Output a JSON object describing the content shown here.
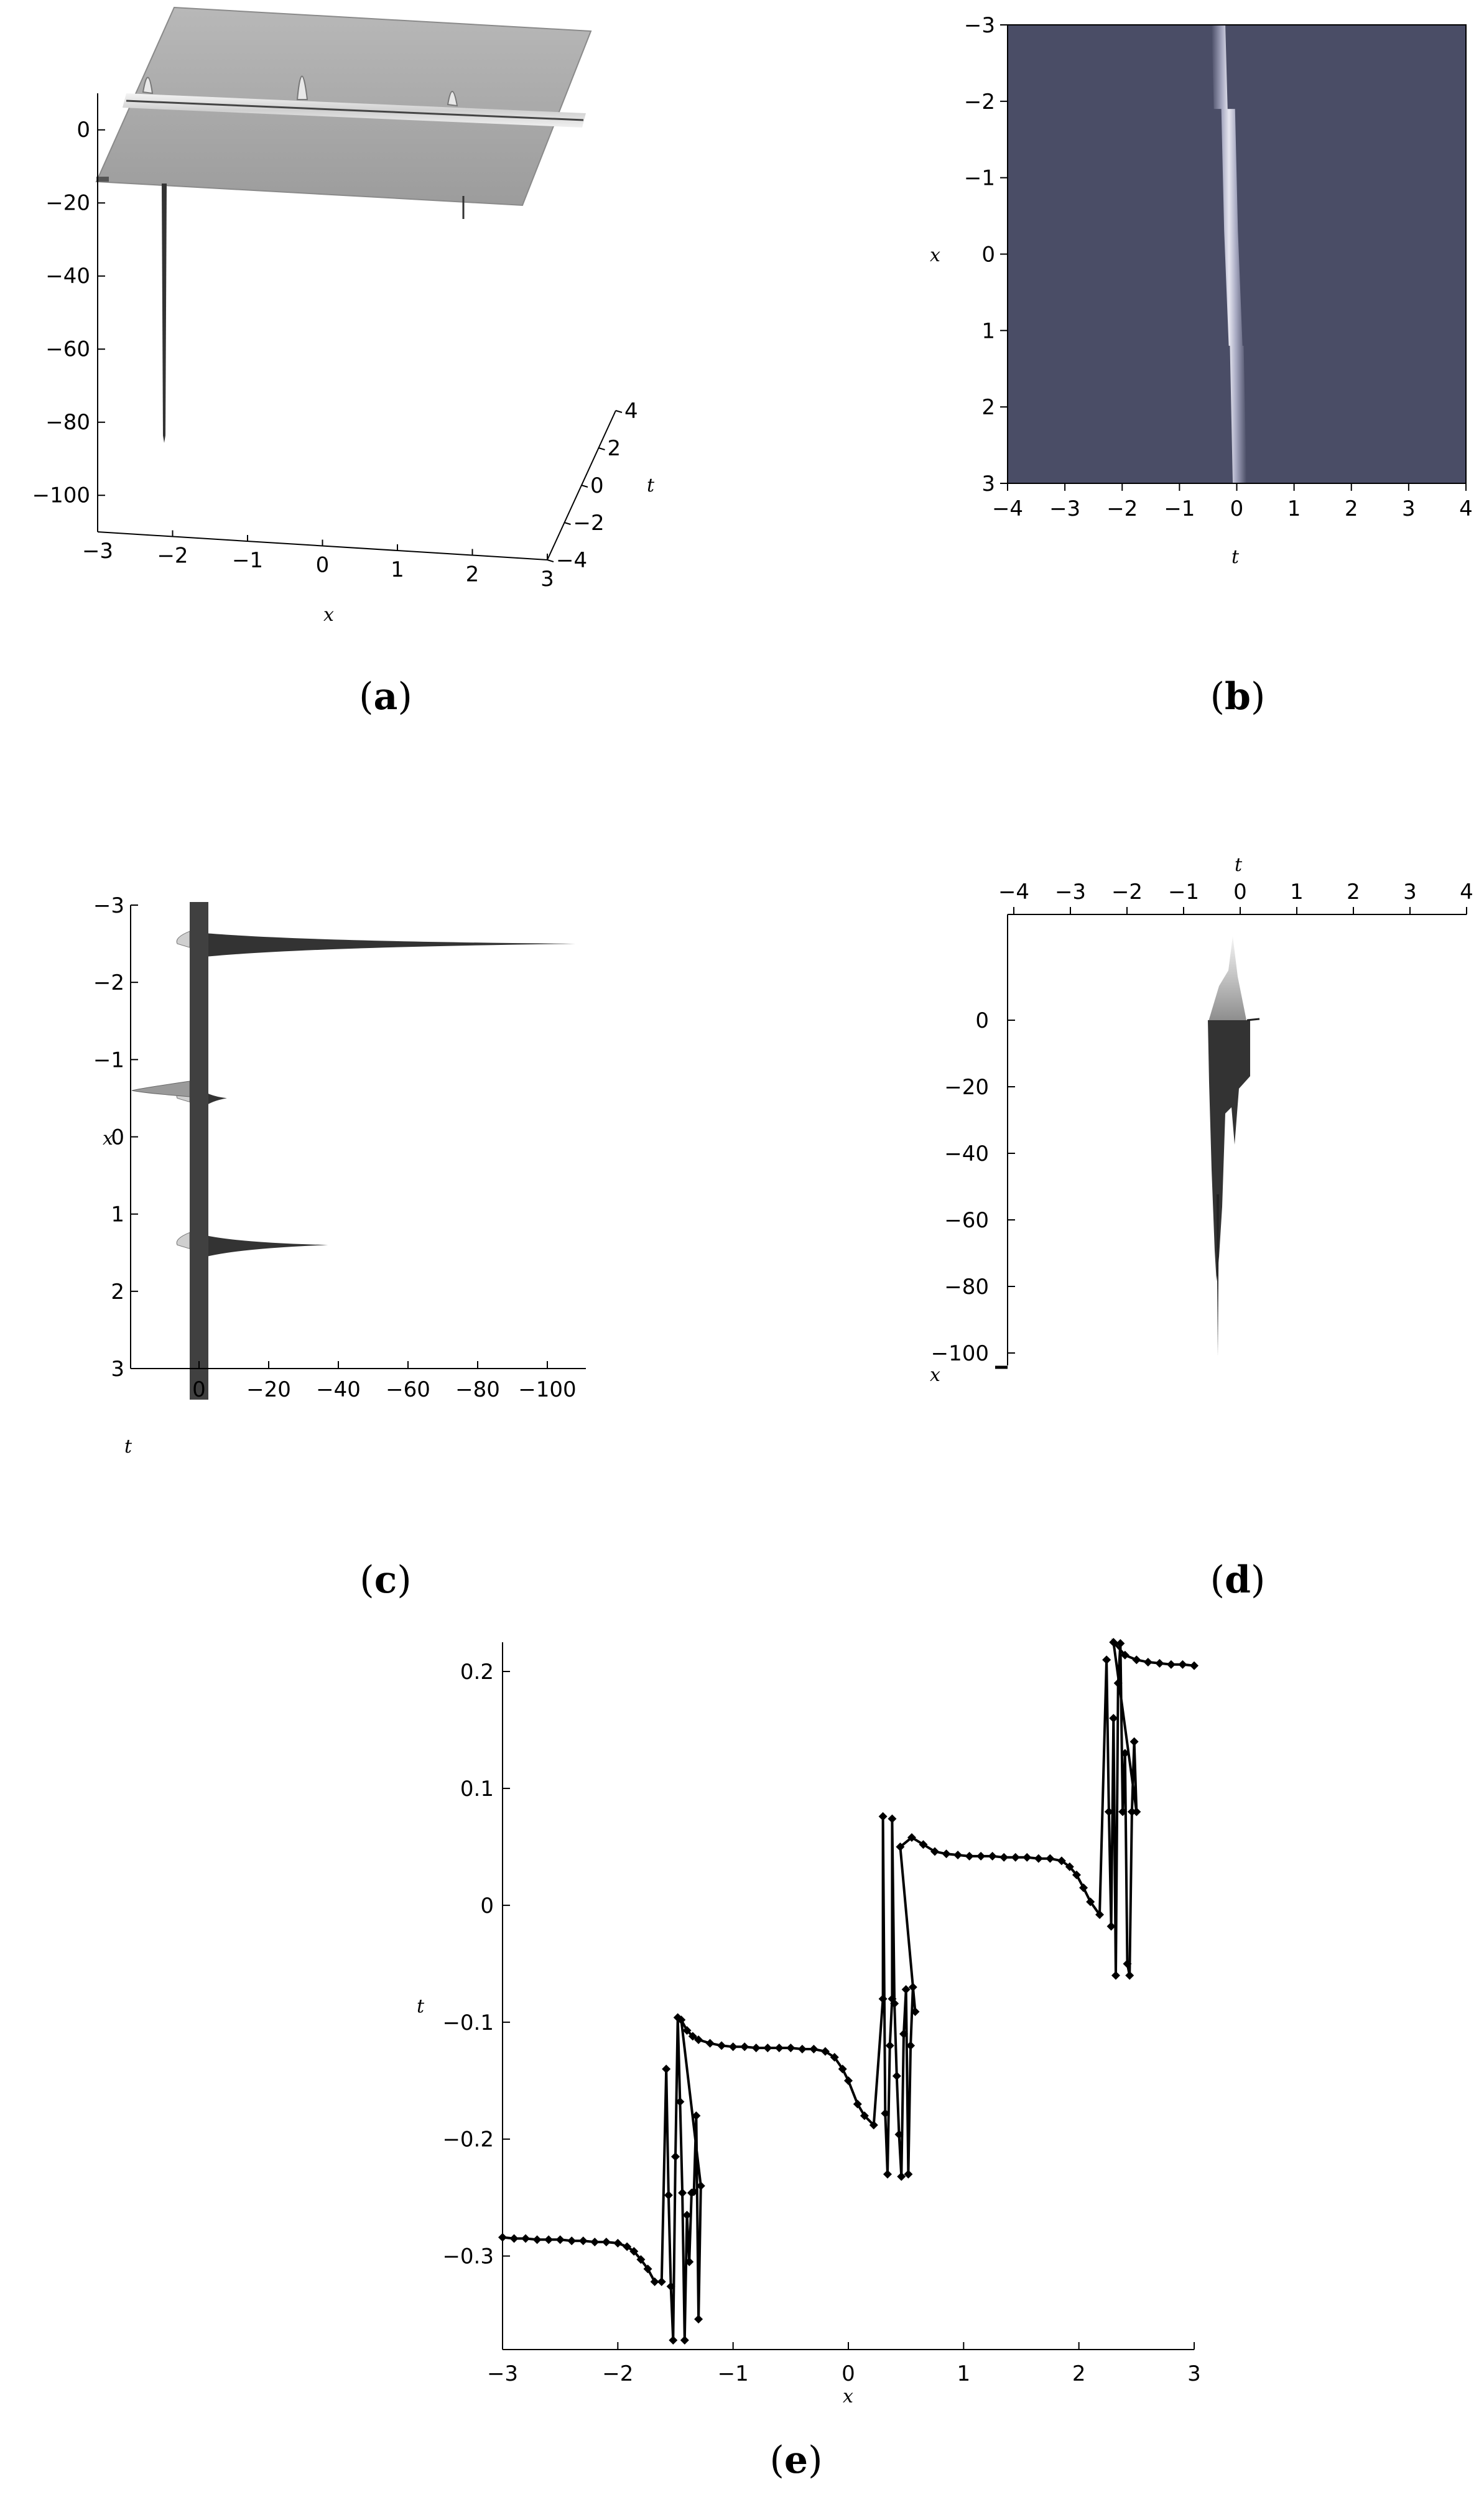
{
  "panels": {
    "a": {
      "caption_open": "(",
      "caption_letter": "a",
      "caption_close": ")"
    },
    "b": {
      "caption_open": "(",
      "caption_letter": "b",
      "caption_close": ")"
    },
    "c": {
      "caption_open": "(",
      "caption_letter": "c",
      "caption_close": ")"
    },
    "d": {
      "caption_open": "(",
      "caption_letter": "d",
      "caption_close": ")"
    },
    "e": {
      "caption_open": "(",
      "caption_letter": "e",
      "caption_close": ")"
    }
  },
  "chart_data": [
    {
      "id": "a",
      "type": "other",
      "view": "3d-surface",
      "xlabel": "x",
      "ylabel": "t",
      "x_ticks": [
        -3,
        -2,
        -1,
        0,
        1,
        2,
        3
      ],
      "z_ticks": [
        0,
        -20,
        -40,
        -60,
        -80,
        -100
      ],
      "t_ticks": [
        4,
        2,
        0,
        -2,
        -4
      ],
      "zlim": [
        -110,
        10
      ],
      "spike_min": -85,
      "colors": {
        "surface": "#a9a9a9",
        "spike": "#333333"
      }
    },
    {
      "id": "b",
      "type": "heatmap",
      "xlabel": "t",
      "ylabel": "x",
      "x_ticks": [
        -4,
        -3,
        -2,
        -1,
        0,
        1,
        2,
        3,
        4
      ],
      "y_ticks": [
        -3,
        -2,
        -1,
        0,
        1,
        2,
        3
      ],
      "xlim": [
        -4,
        4
      ],
      "ylim": [
        -3,
        3
      ],
      "colors": {
        "background": "#4a4d66",
        "ridge": "#d8d8e4"
      }
    },
    {
      "id": "c",
      "type": "other",
      "view": "3d-surface-side",
      "xlabel": "t",
      "ylabel": "x",
      "y_ticks": [
        -3,
        -2,
        -1,
        0,
        1,
        2,
        3
      ],
      "z_ticks": [
        0,
        -20,
        -40,
        -60,
        -80,
        -100
      ],
      "spikes": [
        {
          "x": -2.5,
          "tip": -108
        },
        {
          "x": -0.5,
          "tip": -8
        },
        {
          "x": 1.4,
          "tip": -37
        }
      ],
      "colors": {
        "surface": "#404040",
        "spike": "#333333"
      }
    },
    {
      "id": "d",
      "type": "other",
      "view": "3d-surface-side",
      "xlabel": "t",
      "ylabel": "x",
      "t_ticks": [
        -4,
        -3,
        -2,
        -1,
        0,
        1,
        2,
        3,
        4
      ],
      "z_ticks": [
        0,
        -20,
        -40,
        -60,
        -80,
        -100
      ],
      "zlim": [
        -110,
        20
      ],
      "colors": {
        "surface": "#333333",
        "highlight": "#d0d0d0"
      }
    },
    {
      "id": "e",
      "type": "line",
      "xlabel": "x",
      "ylabel": "t",
      "x_ticks": [
        -3,
        -2,
        -1,
        0,
        1,
        2,
        3
      ],
      "y_ticks": [
        0.2,
        0.1,
        0,
        -0.1,
        -0.2,
        -0.3
      ],
      "xlim": [
        -3,
        3
      ],
      "ylim": [
        -0.38,
        0.225
      ],
      "series": [
        {
          "marker": "diamond",
          "color": "#000000",
          "points": [
            [
              -3.0,
              -0.284
            ],
            [
              -2.9,
              -0.285
            ],
            [
              -2.8,
              -0.285
            ],
            [
              -2.7,
              -0.286
            ],
            [
              -2.6,
              -0.286
            ],
            [
              -2.5,
              -0.286
            ],
            [
              -2.4,
              -0.287
            ],
            [
              -2.3,
              -0.287
            ],
            [
              -2.2,
              -0.288
            ],
            [
              -2.1,
              -0.288
            ],
            [
              -2.0,
              -0.289
            ],
            [
              -1.92,
              -0.292
            ],
            [
              -1.86,
              -0.296
            ],
            [
              -1.8,
              -0.303
            ],
            [
              -1.74,
              -0.311
            ],
            [
              -1.68,
              -0.322
            ],
            [
              -1.62,
              -0.322
            ],
            [
              -1.58,
              -0.14
            ],
            [
              -1.56,
              -0.248
            ],
            [
              -1.54,
              -0.326
            ],
            [
              -1.52,
              -0.372
            ],
            [
              -1.5,
              -0.215
            ],
            [
              -1.48,
              -0.096
            ],
            [
              -1.46,
              -0.168
            ],
            [
              -1.44,
              -0.246
            ],
            [
              -1.42,
              -0.372
            ],
            [
              -1.4,
              -0.265
            ],
            [
              -1.38,
              -0.305
            ],
            [
              -1.36,
              -0.246
            ],
            [
              -1.34,
              -0.245
            ],
            [
              -1.32,
              -0.18
            ],
            [
              -1.3,
              -0.354
            ],
            [
              -1.28,
              -0.24
            ],
            [
              -1.45,
              -0.098
            ],
            [
              -1.4,
              -0.107
            ],
            [
              -1.35,
              -0.112
            ],
            [
              -1.3,
              -0.115
            ],
            [
              -1.2,
              -0.118
            ],
            [
              -1.1,
              -0.12
            ],
            [
              -1.0,
              -0.121
            ],
            [
              -0.9,
              -0.121
            ],
            [
              -0.8,
              -0.122
            ],
            [
              -0.7,
              -0.122
            ],
            [
              -0.6,
              -0.122
            ],
            [
              -0.5,
              -0.122
            ],
            [
              -0.4,
              -0.123
            ],
            [
              -0.3,
              -0.123
            ],
            [
              -0.2,
              -0.125
            ],
            [
              -0.12,
              -0.13
            ],
            [
              -0.05,
              -0.14
            ],
            [
              0.0,
              -0.15
            ],
            [
              0.08,
              -0.17
            ],
            [
              0.14,
              -0.18
            ],
            [
              0.22,
              -0.188
            ],
            [
              0.3,
              -0.08
            ],
            [
              0.3,
              0.076
            ],
            [
              0.32,
              -0.178
            ],
            [
              0.34,
              -0.23
            ],
            [
              0.36,
              -0.12
            ],
            [
              0.38,
              -0.08
            ],
            [
              0.38,
              0.074
            ],
            [
              0.4,
              -0.084
            ],
            [
              0.42,
              -0.146
            ],
            [
              0.44,
              -0.196
            ],
            [
              0.46,
              -0.232
            ],
            [
              0.48,
              -0.11
            ],
            [
              0.5,
              -0.072
            ],
            [
              0.52,
              -0.23
            ],
            [
              0.54,
              -0.12
            ],
            [
              0.56,
              -0.07
            ],
            [
              0.58,
              -0.091
            ],
            [
              0.45,
              0.05
            ],
            [
              0.55,
              0.058
            ],
            [
              0.65,
              0.052
            ],
            [
              0.75,
              0.046
            ],
            [
              0.85,
              0.044
            ],
            [
              0.95,
              0.043
            ],
            [
              1.05,
              0.042
            ],
            [
              1.15,
              0.042
            ],
            [
              1.25,
              0.042
            ],
            [
              1.35,
              0.041
            ],
            [
              1.45,
              0.041
            ],
            [
              1.55,
              0.041
            ],
            [
              1.65,
              0.04
            ],
            [
              1.75,
              0.04
            ],
            [
              1.85,
              0.038
            ],
            [
              1.92,
              0.033
            ],
            [
              1.98,
              0.026
            ],
            [
              2.04,
              0.015
            ],
            [
              2.1,
              0.003
            ],
            [
              2.18,
              -0.008
            ],
            [
              2.24,
              0.21
            ],
            [
              2.26,
              0.08
            ],
            [
              2.28,
              -0.018
            ],
            [
              2.3,
              0.16
            ],
            [
              2.32,
              -0.06
            ],
            [
              2.34,
              0.19
            ],
            [
              2.36,
              0.224
            ],
            [
              2.38,
              0.08
            ],
            [
              2.4,
              0.13
            ],
            [
              2.42,
              -0.05
            ],
            [
              2.44,
              -0.06
            ],
            [
              2.46,
              0.08
            ],
            [
              2.48,
              0.14
            ],
            [
              2.5,
              0.08
            ],
            [
              2.3,
              0.225
            ],
            [
              2.4,
              0.214
            ],
            [
              2.5,
              0.21
            ],
            [
              2.6,
              0.208
            ],
            [
              2.7,
              0.207
            ],
            [
              2.8,
              0.206
            ],
            [
              2.9,
              0.206
            ],
            [
              3.0,
              0.205
            ]
          ]
        }
      ]
    }
  ]
}
